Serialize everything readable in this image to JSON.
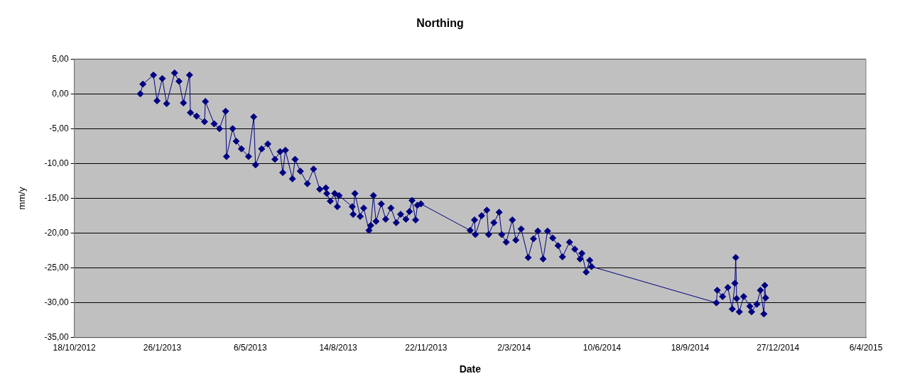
{
  "chart_data": {
    "type": "line",
    "title": "Northing",
    "xlabel": "Date",
    "ylabel": "mm/y",
    "x": [
      "2013-01-01",
      "2013-01-04",
      "2013-01-16",
      "2013-01-20",
      "2013-01-26",
      "2013-01-31",
      "2013-02-09",
      "2013-02-14",
      "2013-02-19",
      "2013-02-26",
      "2013-02-27",
      "2013-03-06",
      "2013-03-15",
      "2013-03-16",
      "2013-03-26",
      "2013-04-01",
      "2013-04-08",
      "2013-04-09",
      "2013-04-16",
      "2013-04-20",
      "2013-04-26",
      "2013-05-04",
      "2013-05-10",
      "2013-05-12",
      "2013-05-19",
      "2013-05-26",
      "2013-06-03",
      "2013-06-09",
      "2013-06-12",
      "2013-06-15",
      "2013-06-23",
      "2013-06-26",
      "2013-07-02",
      "2013-07-10",
      "2013-07-17",
      "2013-07-24",
      "2013-07-31",
      "2013-08-01",
      "2013-08-05",
      "2013-08-10",
      "2013-08-13",
      "2013-08-15",
      "2013-08-30",
      "2013-08-31",
      "2013-09-02",
      "2013-09-08",
      "2013-09-12",
      "2013-09-18",
      "2013-09-20",
      "2013-09-23",
      "2013-09-26",
      "2013-10-02",
      "2013-10-07",
      "2013-10-13",
      "2013-10-19",
      "2013-10-24",
      "2013-10-30",
      "2013-11-03",
      "2013-11-06",
      "2013-11-10",
      "2013-11-12",
      "2013-11-16",
      "2014-01-11",
      "2014-01-16",
      "2014-01-17",
      "2014-01-24",
      "2014-01-30",
      "2014-02-01",
      "2014-02-07",
      "2014-02-13",
      "2014-02-16",
      "2014-02-21",
      "2014-02-28",
      "2014-03-04",
      "2014-03-10",
      "2014-03-18",
      "2014-03-24",
      "2014-03-29",
      "2014-04-04",
      "2014-04-09",
      "2014-04-15",
      "2014-04-21",
      "2014-04-26",
      "2014-05-04",
      "2014-05-10",
      "2014-05-16",
      "2014-05-18",
      "2014-05-23",
      "2014-05-27",
      "2014-05-29",
      "2014-10-18",
      "2014-10-19",
      "2014-10-25",
      "2014-10-31",
      "2014-11-05",
      "2014-11-08",
      "2014-11-09",
      "2014-11-10",
      "2014-11-13",
      "2014-11-18",
      "2014-11-25",
      "2014-11-27",
      "2014-12-03",
      "2014-12-07",
      "2014-12-11",
      "2014-12-12",
      "2014-12-13"
    ],
    "series": [
      {
        "color": "#000080",
        "values": [
          0.0,
          1.4,
          2.7,
          -1.0,
          2.2,
          -1.4,
          3.0,
          1.8,
          -1.3,
          2.7,
          -2.7,
          -3.2,
          -4.0,
          -1.1,
          -4.3,
          -5.0,
          -2.5,
          -9.0,
          -5.0,
          -6.8,
          -7.9,
          -9.0,
          -3.3,
          -10.2,
          -7.9,
          -7.2,
          -9.4,
          -8.3,
          -11.3,
          -8.1,
          -12.2,
          -9.4,
          -11.1,
          -12.9,
          -10.8,
          -13.7,
          -13.5,
          -14.3,
          -15.4,
          -14.3,
          -16.2,
          -14.6,
          -16.2,
          -17.3,
          -14.3,
          -17.6,
          -16.4,
          -19.6,
          -18.9,
          -14.6,
          -18.3,
          -15.8,
          -18.0,
          -16.4,
          -18.5,
          -17.3,
          -18.0,
          -16.9,
          -15.3,
          -18.1,
          -16.0,
          -15.8,
          -19.6,
          -18.1,
          -20.2,
          -17.5,
          -16.7,
          -20.2,
          -18.5,
          -17.0,
          -20.2,
          -21.3,
          -18.1,
          -21.0,
          -19.4,
          -23.5,
          -20.8,
          -19.7,
          -23.7,
          -19.7,
          -20.7,
          -21.8,
          -23.4,
          -21.3,
          -22.3,
          -23.7,
          -22.9,
          -25.6,
          -23.9,
          -24.8,
          -30.0,
          -28.2,
          -29.1,
          -27.8,
          -30.9,
          -27.2,
          -23.5,
          -29.4,
          -31.3,
          -29.1,
          -30.5,
          -31.3,
          -30.2,
          -28.2,
          -31.6,
          -27.5,
          -29.3
        ]
      }
    ],
    "xlim": [
      "2012-10-18",
      "2015-04-06"
    ],
    "xticks": [
      {
        "value": "2012-10-18",
        "label": "18/10/2012"
      },
      {
        "value": "2013-01-26",
        "label": "26/1/2013"
      },
      {
        "value": "2013-05-06",
        "label": "6/5/2013"
      },
      {
        "value": "2013-08-14",
        "label": "14/8/2013"
      },
      {
        "value": "2013-11-22",
        "label": "22/11/2013"
      },
      {
        "value": "2014-03-02",
        "label": "2/3/2014"
      },
      {
        "value": "2014-06-10",
        "label": "10/6/2014"
      },
      {
        "value": "2014-09-18",
        "label": "18/9/2014"
      },
      {
        "value": "2014-12-27",
        "label": "27/12/2014"
      },
      {
        "value": "2015-04-06",
        "label": "6/4/2015"
      }
    ],
    "ylim": [
      -35,
      5
    ],
    "yticks": [
      {
        "value": -35,
        "label": "-35,00"
      },
      {
        "value": -30,
        "label": "-30,00"
      },
      {
        "value": -25,
        "label": "-25,00"
      },
      {
        "value": -20,
        "label": "-20,00"
      },
      {
        "value": -15,
        "label": "-15,00"
      },
      {
        "value": -10,
        "label": "-10,00"
      },
      {
        "value": -5,
        "label": "-5,00"
      },
      {
        "value": 0,
        "label": "0,00"
      },
      {
        "value": 5,
        "label": "5,00"
      }
    ],
    "grid": "y",
    "legend": false,
    "marker": "diamond",
    "line_style": "solid"
  }
}
